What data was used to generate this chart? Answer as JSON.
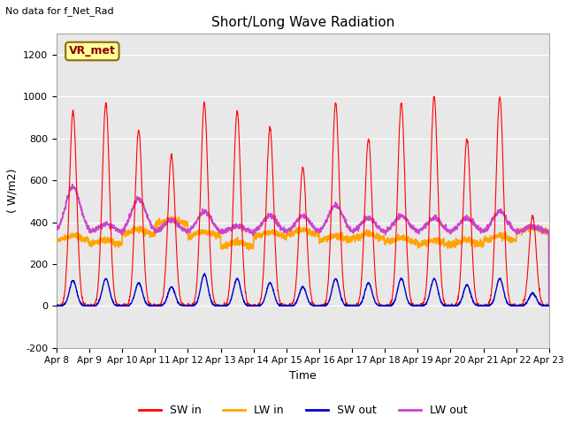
{
  "title": "Short/Long Wave Radiation",
  "ylabel": "( W/m2)",
  "xlabel": "Time",
  "top_left_text": "No data for f_Net_Rad",
  "legend_label": "VR_met",
  "ylim": [
    -200,
    1300
  ],
  "yticks": [
    -200,
    0,
    200,
    400,
    600,
    800,
    1000,
    1200
  ],
  "xtick_labels": [
    "Apr 8",
    "Apr 9",
    "Apr 10",
    "Apr 11",
    "Apr 12",
    "Apr 13",
    "Apr 14",
    "Apr 15",
    "Apr 16",
    "Apr 17",
    "Apr 18",
    "Apr 19",
    "Apr 20",
    "Apr 21",
    "Apr 22",
    "Apr 23"
  ],
  "colors": {
    "SW_in": "#FF0000",
    "LW_in": "#FFA500",
    "SW_out": "#0000CC",
    "LW_out": "#CC44CC"
  },
  "bg_color": "#E8E8E8",
  "n_days": 15,
  "pts_per_day": 144,
  "legend_items": [
    "SW in",
    "LW in",
    "SW out",
    "LW out"
  ],
  "sw_peaks": [
    930,
    970,
    840,
    720,
    970,
    930,
    850,
    660,
    970,
    800,
    970,
    1000,
    800,
    1000,
    430
  ],
  "sw_out_peaks": [
    120,
    130,
    110,
    90,
    150,
    130,
    110,
    90,
    130,
    110,
    130,
    130,
    100,
    130,
    60
  ],
  "lw_in_base": [
    310,
    290,
    340,
    390,
    330,
    280,
    330,
    340,
    310,
    320,
    300,
    290,
    290,
    310,
    350
  ],
  "lw_out_peaks": [
    570,
    390,
    510,
    410,
    450,
    380,
    430,
    430,
    480,
    420,
    430,
    420,
    420,
    450,
    380
  ],
  "lw_out_night": 350
}
